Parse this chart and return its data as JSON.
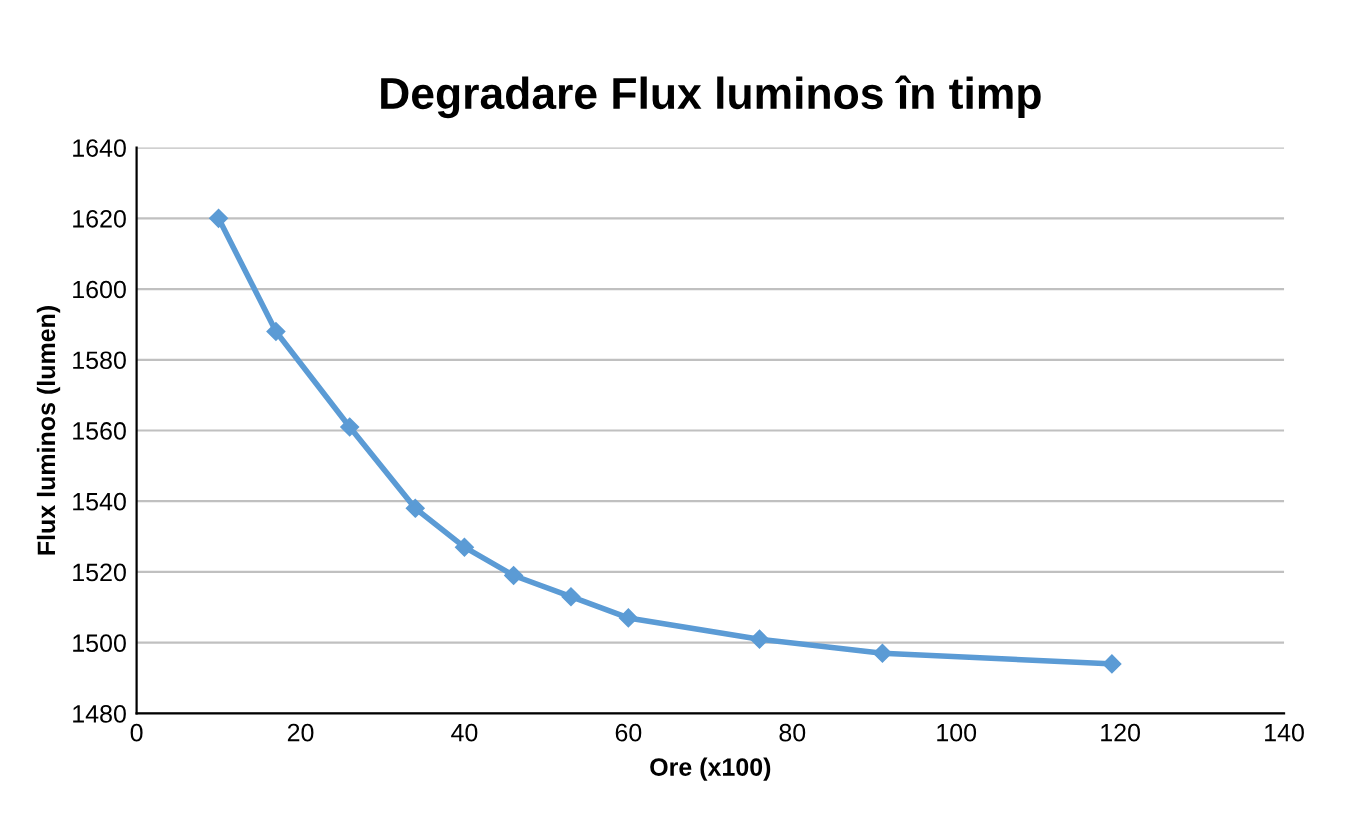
{
  "chart_data": {
    "type": "line",
    "title": "Degradare Flux luminos în timp",
    "xlabel": "Ore (x100)",
    "ylabel": "Flux luminos (lumen)",
    "x": [
      10,
      17,
      26,
      34,
      40,
      46,
      53,
      60,
      76,
      91,
      119
    ],
    "series": [
      {
        "color": "#5b9bd5",
        "values": [
          1620,
          1588,
          1561,
          1538,
          1527,
          1519,
          1513,
          1507,
          1501,
          1497,
          1494
        ]
      }
    ],
    "xlim": [
      0,
      140
    ],
    "xticks": [
      0,
      20,
      40,
      60,
      80,
      100,
      120,
      140
    ],
    "ylim": [
      1480,
      1640
    ],
    "yticks": [
      1480,
      1500,
      1520,
      1540,
      1560,
      1580,
      1600,
      1620,
      1640
    ],
    "grid": "y",
    "marker": "diamond",
    "line_style": "solid"
  }
}
